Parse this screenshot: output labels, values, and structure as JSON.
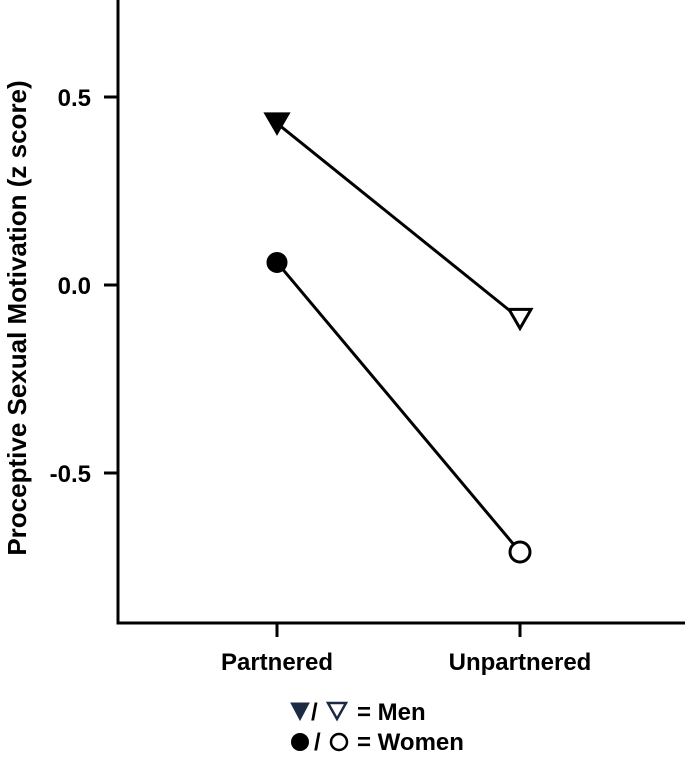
{
  "chart_data": {
    "type": "line",
    "ylabel": "Proceptive Sexual  Motivation (z score)",
    "xlabel": "",
    "categories": [
      "Partnered",
      "Unpartnered"
    ],
    "ylim": [
      -0.88,
      0.75
    ],
    "yticks": [
      0.5,
      0.0,
      -0.5
    ],
    "ytick_labels": [
      "0.5",
      "0.0",
      "-0.5"
    ],
    "grid": false,
    "series": [
      {
        "name": "Men",
        "values": [
          0.43,
          -0.09
        ],
        "markers": [
          "filled-triangle-down",
          "open-triangle-down"
        ]
      },
      {
        "name": "Women",
        "values": [
          0.06,
          -0.71
        ],
        "markers": [
          "filled-circle",
          "open-circle"
        ]
      }
    ],
    "legend": {
      "placement": "bottom-center",
      "entries": [
        {
          "symbol_sep": "/",
          "label": "= Men"
        },
        {
          "symbol_sep": "/",
          "label": "= Women"
        }
      ],
      "triangle_color": "#1c2a44"
    }
  }
}
